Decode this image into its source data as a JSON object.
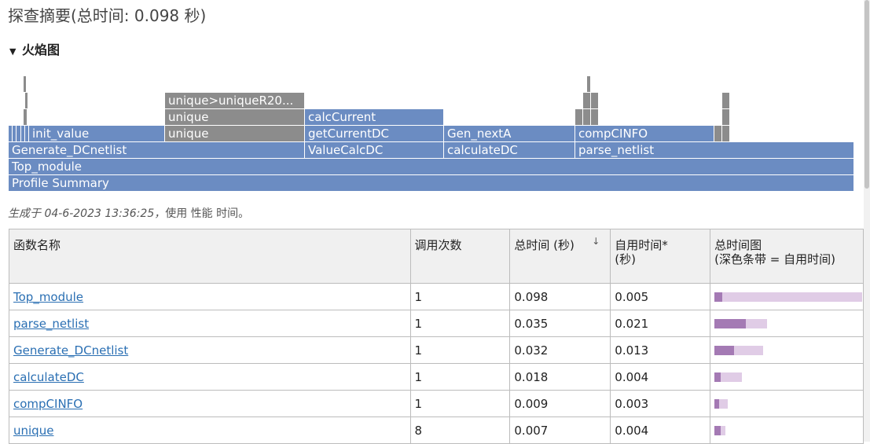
{
  "page": {
    "title": "探查摘要(总时间: 0.098 秒)"
  },
  "flame_section": {
    "caret": "▼",
    "title": "火焰图"
  },
  "flame_labels": {
    "profile_summary": "Profile Summary",
    "top_module": "Top_module",
    "generate_dcnetlist": "Generate_DCnetlist",
    "valuecalcdc": "ValueCalcDC",
    "calculatedc": "calculateDC",
    "parse_netlist": "parse_netlist",
    "init_value": "init_value",
    "unique_1": "unique",
    "unique_2": "unique",
    "unique_long": "unique>uniqueR20...",
    "getcurrentdc": "getCurrentDC",
    "calccurrent": "calcCurrent",
    "gen_nexta": "Gen_nextA",
    "compcinfo": "compCINFO"
  },
  "generated": {
    "italic": "生成于 04-6-2023 13:36:25，",
    "rest": "使用 性能 时间。"
  },
  "table": {
    "headers": {
      "name": "函数名称",
      "calls": "调用次数",
      "total": "总时间 (秒)",
      "sort_icon": "↓",
      "self_line1": "自用时间*",
      "self_line2": "(秒)",
      "plot_line1": "总时间图",
      "plot_line2": "(深色条带 = 自用时间)"
    },
    "rows": [
      {
        "name": "Top_module",
        "calls": "1",
        "total": "0.098",
        "self": "0.005"
      },
      {
        "name": "parse_netlist",
        "calls": "1",
        "total": "0.035",
        "self": "0.021"
      },
      {
        "name": "Generate_DCnetlist",
        "calls": "1",
        "total": "0.032",
        "self": "0.013"
      },
      {
        "name": "calculateDC",
        "calls": "1",
        "total": "0.018",
        "self": "0.004"
      },
      {
        "name": "compCINFO",
        "calls": "1",
        "total": "0.009",
        "self": "0.003"
      },
      {
        "name": "unique",
        "calls": "8",
        "total": "0.007",
        "self": "0.004"
      }
    ]
  },
  "colors": {
    "flame_blue": "#6b8cc2",
    "flame_gray": "#8c8c8c",
    "bar_total": "#e0cce6",
    "bar_self": "#a47ab4",
    "link": "#2a6fb3"
  }
}
